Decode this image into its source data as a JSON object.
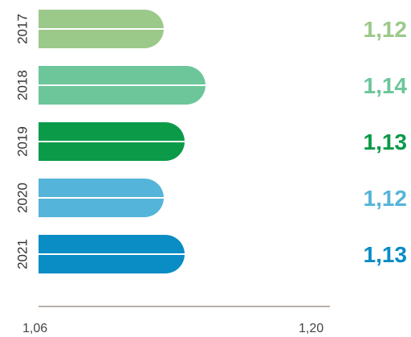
{
  "chart_data": {
    "type": "bar",
    "orientation": "horizontal",
    "categories": [
      "2017",
      "2018",
      "2019",
      "2020",
      "2021"
    ],
    "values": [
      1.12,
      1.14,
      1.13,
      1.12,
      1.13
    ],
    "value_labels": [
      "1,12",
      "1,14",
      "1,13",
      "1,12",
      "1,13"
    ],
    "colors": [
      "#9bc98a",
      "#6cc699",
      "#0a9a48",
      "#55b4d9",
      "#0a8cc4"
    ],
    "xlim": [
      1.06,
      1.2
    ],
    "x_tick_labels": [
      "1,06",
      "1,20"
    ],
    "grid": false,
    "legend": "none",
    "title": "",
    "xlabel": "",
    "ylabel": ""
  }
}
